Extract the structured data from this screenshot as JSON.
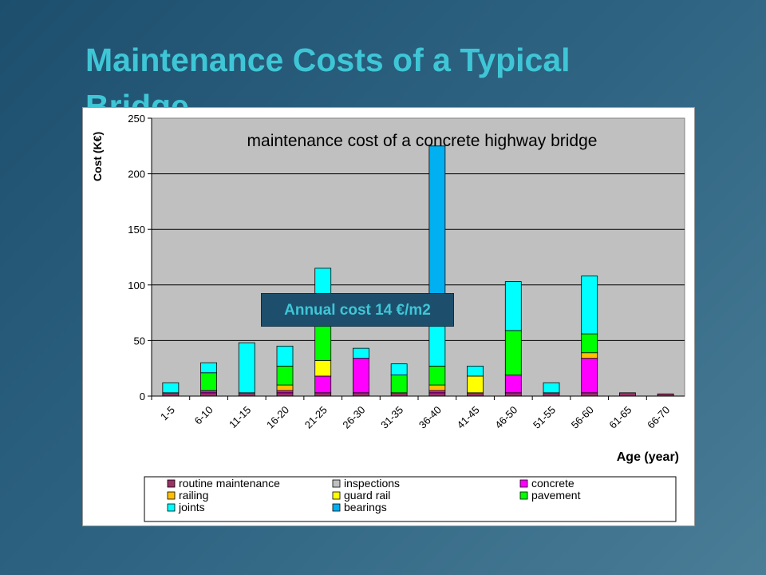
{
  "slide": {
    "title": "Maintenance Costs of a Typical Bridge"
  },
  "annotation": {
    "text": "Annual cost 14 €/m2"
  },
  "chart_data": {
    "type": "bar",
    "stacked": true,
    "title": "maintenance cost of a concrete highway bridge",
    "xlabel": "Age (year)",
    "ylabel": "Cost (K€)",
    "ylim": [
      0,
      250
    ],
    "yticks": [
      0,
      50,
      100,
      150,
      200,
      250
    ],
    "grid": true,
    "legend_position": "bottom",
    "categories": [
      "1-5",
      "6-10",
      "11-15",
      "16-20",
      "21-25",
      "26-30",
      "31-35",
      "36-40",
      "41-45",
      "46-50",
      "51-55",
      "56-60",
      "61-65",
      "66-70"
    ],
    "series": [
      {
        "name": "routine maintenance",
        "color": "#993366",
        "values": [
          3,
          3,
          3,
          3,
          3,
          3,
          3,
          3,
          3,
          3,
          3,
          3,
          3,
          2
        ]
      },
      {
        "name": "inspections",
        "color": "#c0c0c0",
        "values": [
          0,
          0,
          0,
          0,
          0,
          0,
          0,
          0,
          0,
          0,
          0,
          0,
          0,
          0
        ]
      },
      {
        "name": "concrete",
        "color": "#ff00ff",
        "values": [
          0,
          2,
          0,
          2,
          15,
          31,
          0,
          2,
          0,
          16,
          0,
          31,
          0,
          0
        ]
      },
      {
        "name": "railing",
        "color": "#ffc000",
        "values": [
          0,
          0,
          0,
          5,
          0,
          0,
          0,
          5,
          0,
          0,
          0,
          5,
          0,
          0
        ]
      },
      {
        "name": "guard rail",
        "color": "#ffff00",
        "values": [
          0,
          0,
          0,
          0,
          14,
          0,
          0,
          0,
          15,
          0,
          0,
          0,
          0,
          0
        ]
      },
      {
        "name": "pavement",
        "color": "#00ff00",
        "values": [
          0,
          16,
          0,
          17,
          40,
          0,
          16,
          17,
          0,
          40,
          0,
          17,
          0,
          0
        ]
      },
      {
        "name": "joints",
        "color": "#00ffff",
        "values": [
          9,
          9,
          45,
          18,
          43,
          9,
          10,
          53,
          9,
          44,
          9,
          52,
          0,
          0
        ]
      },
      {
        "name": "bearings",
        "color": "#00b0f0",
        "values": [
          0,
          0,
          0,
          0,
          0,
          0,
          0,
          145,
          0,
          0,
          0,
          0,
          0,
          0
        ]
      }
    ]
  }
}
